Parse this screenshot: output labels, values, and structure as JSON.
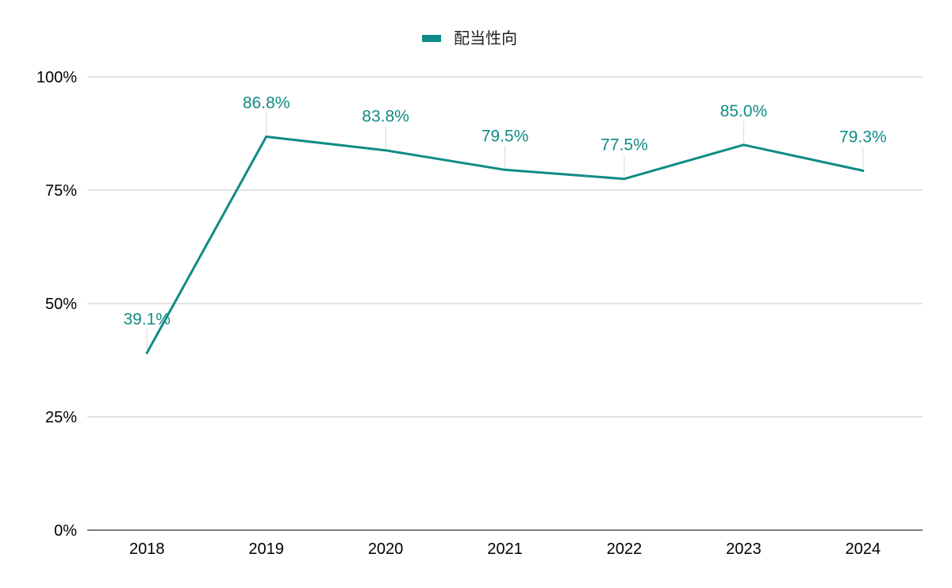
{
  "chart_data": {
    "type": "line",
    "categories": [
      "2018",
      "2019",
      "2020",
      "2021",
      "2022",
      "2023",
      "2024"
    ],
    "series": [
      {
        "name": "配当性向",
        "values": [
          39.1,
          86.8,
          83.8,
          79.5,
          77.5,
          85.0,
          79.3
        ],
        "labels": [
          "39.1%",
          "86.8%",
          "83.8%",
          "79.5%",
          "77.5%",
          "85.0%",
          "79.3%"
        ],
        "color": "#0F8C85"
      }
    ],
    "ylim": [
      0,
      100
    ],
    "yticks": [
      0,
      25,
      50,
      75,
      100
    ],
    "ytick_labels": [
      "0%",
      "25%",
      "50%",
      "75%",
      "100%"
    ],
    "grid": true,
    "legend_position": "top-center",
    "gridline_color": "#C8C8C8"
  }
}
